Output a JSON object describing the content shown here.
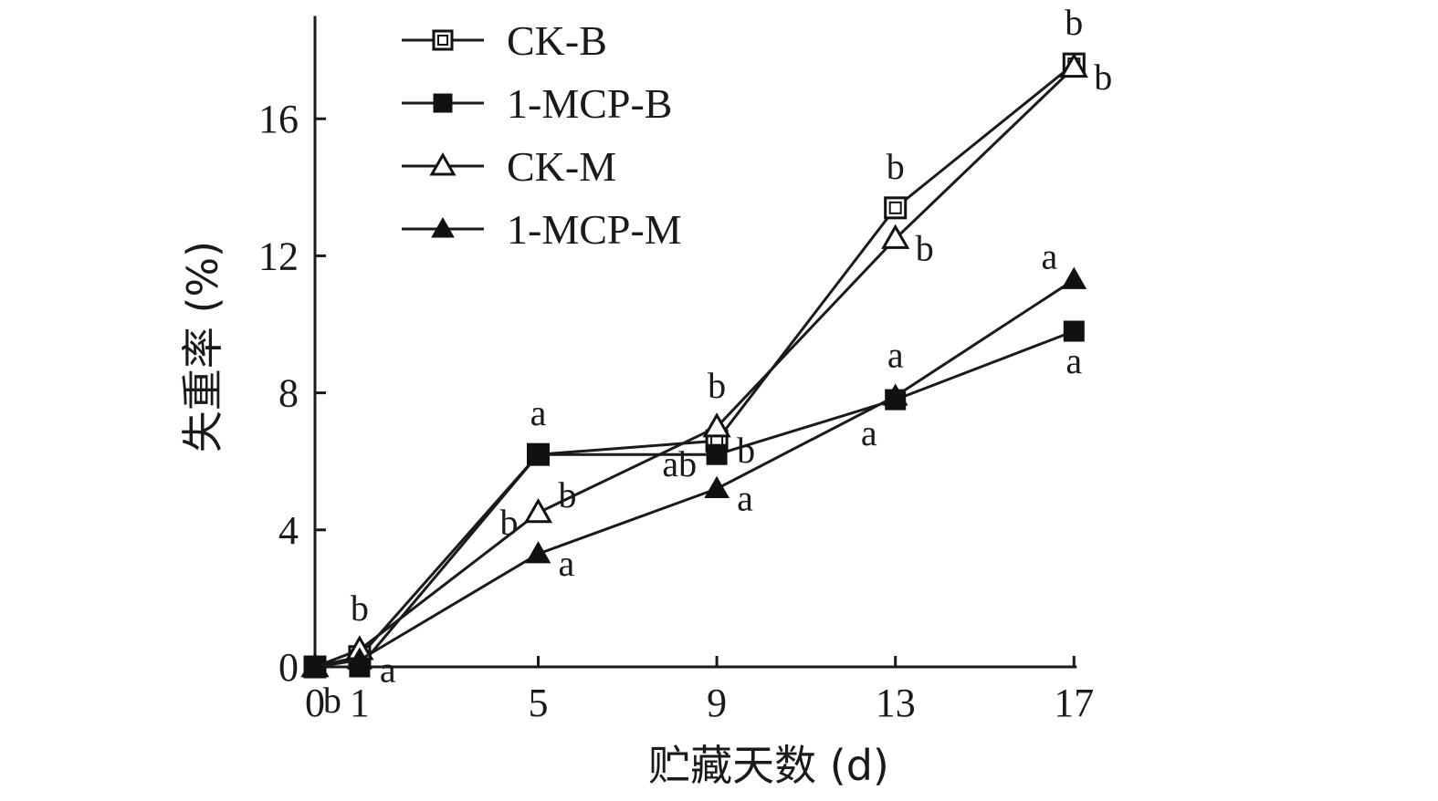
{
  "chart_data": {
    "type": "line",
    "xlabel": "贮藏天数 (d)",
    "ylabel": "失重率 (%)",
    "x": [
      0,
      1,
      5,
      9,
      13,
      17
    ],
    "xticks": [
      0,
      1,
      5,
      9,
      13,
      17
    ],
    "yticks": [
      0,
      4,
      8,
      12,
      16
    ],
    "ylim": [
      0,
      19
    ],
    "grid": false,
    "legend_position": "top-left",
    "series": [
      {
        "name": "CK-B",
        "marker": "square-open",
        "values": [
          0,
          0.3,
          6.2,
          6.6,
          13.4,
          17.6
        ]
      },
      {
        "name": "1-MCP-B",
        "marker": "square-filled",
        "values": [
          0,
          0.0,
          6.2,
          6.2,
          7.8,
          9.8
        ]
      },
      {
        "name": "CK-M",
        "marker": "triangle-open",
        "values": [
          0,
          0.5,
          4.5,
          7.0,
          12.5,
          17.5
        ]
      },
      {
        "name": "1-MCP-M",
        "marker": "triangle-filled",
        "values": [
          0,
          0.2,
          3.3,
          5.2,
          7.9,
          11.3
        ]
      }
    ],
    "annotations": [
      {
        "text": "b",
        "x": 1,
        "y": 0.5,
        "pos": "above"
      },
      {
        "text": "a",
        "x": 1,
        "y": 0.2,
        "pos": "right"
      },
      {
        "text": "b",
        "x": 1,
        "y": 0.0,
        "pos": "below-left"
      },
      {
        "text": "a",
        "x": 5,
        "y": 6.2,
        "pos": "above"
      },
      {
        "text": "b",
        "x": 5,
        "y": 4.5,
        "pos": "upper-right"
      },
      {
        "text": "b",
        "x": 5,
        "y": 4.5,
        "pos": "left"
      },
      {
        "text": "a",
        "x": 5,
        "y": 3.3,
        "pos": "right"
      },
      {
        "text": "b",
        "x": 9,
        "y": 7.0,
        "pos": "above"
      },
      {
        "text": "b",
        "x": 9,
        "y": 6.6,
        "pos": "right"
      },
      {
        "text": "ab",
        "x": 9,
        "y": 6.2,
        "pos": "left"
      },
      {
        "text": "a",
        "x": 9,
        "y": 5.2,
        "pos": "right"
      },
      {
        "text": "b",
        "x": 13,
        "y": 13.4,
        "pos": "above"
      },
      {
        "text": "b",
        "x": 13,
        "y": 12.5,
        "pos": "right"
      },
      {
        "text": "a",
        "x": 13,
        "y": 7.9,
        "pos": "above"
      },
      {
        "text": "a",
        "x": 13,
        "y": 7.8,
        "pos": "below-left"
      },
      {
        "text": "b",
        "x": 17,
        "y": 17.6,
        "pos": "above"
      },
      {
        "text": "b",
        "x": 17,
        "y": 17.5,
        "pos": "right"
      },
      {
        "text": "a",
        "x": 17,
        "y": 11.3,
        "pos": "above-left"
      },
      {
        "text": "a",
        "x": 17,
        "y": 9.8,
        "pos": "below"
      }
    ]
  }
}
